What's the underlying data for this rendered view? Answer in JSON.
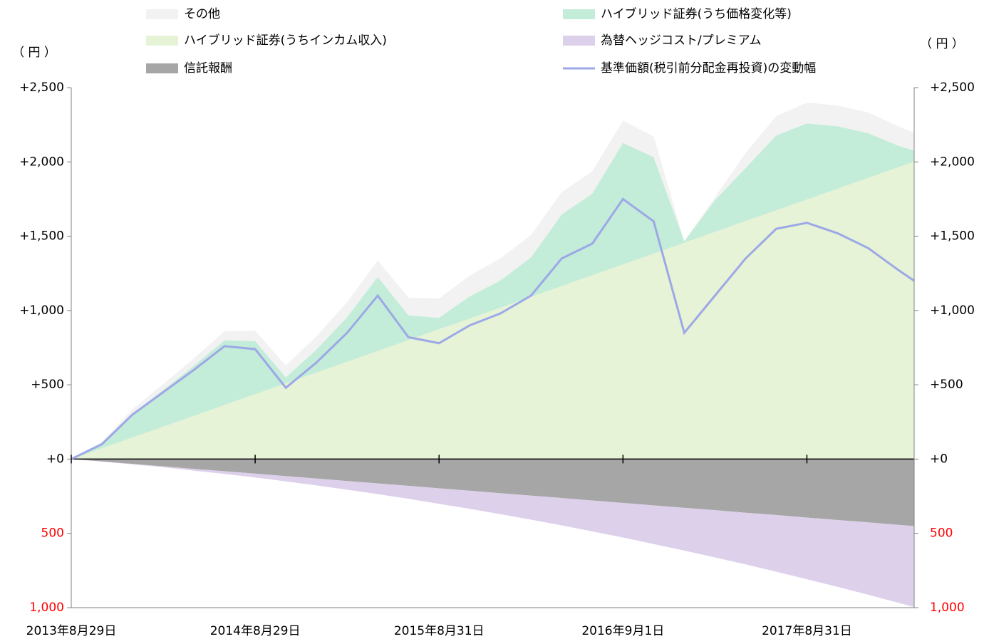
{
  "chart_data": {
    "type": "stacked_area_line",
    "y_label": "（ 円 ）",
    "y2_label": "（ 円 ）",
    "x": [
      0,
      2,
      4,
      6,
      8,
      10,
      12,
      14,
      16,
      18,
      20,
      22,
      24,
      26,
      28,
      30,
      32,
      34,
      36,
      38,
      40,
      42,
      44,
      46,
      48,
      50,
      52,
      54,
      55
    ],
    "xlim": [
      0,
      55
    ],
    "xticks": [
      {
        "value": 0,
        "label": "2013年8月29日"
      },
      {
        "value": 12,
        "label": "2014年8月29日"
      },
      {
        "value": 24,
        "label": "2015年8月31日"
      },
      {
        "value": 36,
        "label": "2016年9月1日"
      },
      {
        "value": 48,
        "label": "2017年8月31日"
      }
    ],
    "ylim": [
      -1000,
      2500
    ],
    "yticks": [
      {
        "value": 2500,
        "label": "+2,500"
      },
      {
        "value": 2000,
        "label": "+2,000"
      },
      {
        "value": 1500,
        "label": "+1,500"
      },
      {
        "value": 1000,
        "label": "+1,000"
      },
      {
        "value": 500,
        "label": "+500"
      },
      {
        "value": 0,
        "label": "+0"
      },
      {
        "value": -500,
        "label": "500"
      },
      {
        "value": -1000,
        "label": "1,000"
      }
    ],
    "y2lim": [
      -1000,
      2500
    ],
    "y2ticks": [
      {
        "value": 2500,
        "label": "+2,500"
      },
      {
        "value": 2000,
        "label": "+2,000"
      },
      {
        "value": 1500,
        "label": "+1,500"
      },
      {
        "value": 1000,
        "label": "+1,000"
      },
      {
        "value": 500,
        "label": "+500"
      },
      {
        "value": 0,
        "label": "+0"
      },
      {
        "value": -500,
        "label": "500"
      },
      {
        "value": -1000,
        "label": "1,000"
      }
    ],
    "negative_tick_color": "#ff0000",
    "series": [
      {
        "name": "その他",
        "color": "#f2f2f2",
        "kind": "area",
        "values": [
          0,
          20,
          30,
          40,
          50,
          60,
          70,
          80,
          90,
          100,
          110,
          120,
          130,
          140,
          150,
          150,
          150,
          150,
          150,
          140,
          0,
          20,
          100,
          130,
          140,
          140,
          140,
          130,
          120
        ]
      },
      {
        "name": "ハイブリッド証券(うち価格変化等)",
        "color": "#c3ecd9",
        "kind": "area",
        "values": [
          0,
          24,
          160,
          247,
          337,
          436,
          357,
          40,
          155,
          301,
          498,
          166,
          77,
          149,
          182,
          266,
          481,
          549,
          818,
          649,
          10,
          213,
          357,
          504,
          512,
          420,
          300,
          142,
          74
        ]
      },
      {
        "name": "ハイブリッド証券(うちインカム収入)",
        "color": "#e6f3d6",
        "kind": "area",
        "values": [
          0,
          73,
          146,
          218,
          291,
          364,
          437,
          510,
          582,
          655,
          728,
          801,
          874,
          946,
          1019,
          1092,
          1165,
          1238,
          1310,
          1383,
          1456,
          1529,
          1602,
          1674,
          1747,
          1820,
          1893,
          1966,
          2002
        ]
      },
      {
        "name": "為替ヘッジコスト/プレミアム",
        "color": "#ddd0eb",
        "kind": "area",
        "values": [
          0,
          -1,
          -3,
          -6,
          -12,
          -18,
          -26,
          -35,
          -46,
          -58,
          -72,
          -87,
          -104,
          -122,
          -141,
          -162,
          -184,
          -208,
          -233,
          -260,
          -288,
          -318,
          -348,
          -381,
          -415,
          -450,
          -487,
          -525,
          -545
        ]
      },
      {
        "name": "信託報酬",
        "color": "#a6a6a6",
        "kind": "area",
        "values": [
          0,
          -16,
          -33,
          -49,
          -66,
          -82,
          -98,
          -115,
          -131,
          -148,
          -164,
          -180,
          -197,
          -213,
          -230,
          -246,
          -262,
          -279,
          -295,
          -312,
          -328,
          -344,
          -361,
          -377,
          -394,
          -410,
          -426,
          -443,
          -451
        ]
      },
      {
        "name": "基準価額(税引前分配金再投資)の変動幅",
        "color": "#9da8e6",
        "kind": "line",
        "values": [
          0,
          100,
          300,
          450,
          600,
          760,
          740,
          480,
          650,
          850,
          1100,
          820,
          780,
          900,
          980,
          1100,
          1350,
          1450,
          1750,
          1600,
          850,
          1100,
          1350,
          1550,
          1590,
          1520,
          1420,
          1270,
          1200
        ]
      }
    ]
  }
}
